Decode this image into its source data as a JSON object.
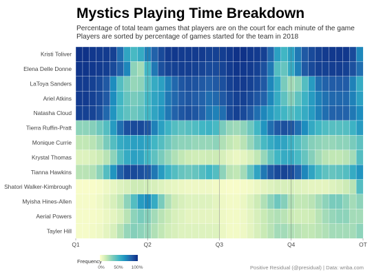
{
  "title": "Mystics Playing Time Breakdown",
  "subtitle_lines": [
    "Percentage of total team games that players are on the court for each minute of the game",
    "Players are sorted by percentage of games started for the team in 2018"
  ],
  "caption": "Positive Residual (@presidual)  |  Data: wnba.com",
  "colors": [
    "#ffffcc",
    "#c7e9b4",
    "#7fcdbb",
    "#41b6c4",
    "#1d91c0",
    "#225ea8",
    "#0c2c84"
  ],
  "legend": {
    "title": "Frequency",
    "ticks": [
      "0%",
      "50%",
      "100%"
    ]
  },
  "chart_data": {
    "type": "heatmap",
    "x_ticks": [
      "Q1",
      "Q2",
      "Q3",
      "Q4",
      "OT"
    ],
    "columns": 42,
    "value_range": [
      0,
      1
    ],
    "rows": [
      {
        "player": "Kristi Toliver",
        "values": [
          0.98,
          0.98,
          0.96,
          0.95,
          0.95,
          0.93,
          0.78,
          0.58,
          0.48,
          0.55,
          0.72,
          0.82,
          0.9,
          0.95,
          0.96,
          0.95,
          0.95,
          0.95,
          0.95,
          0.93,
          0.93,
          0.94,
          0.96,
          0.98,
          0.98,
          0.96,
          0.95,
          0.93,
          0.8,
          0.6,
          0.5,
          0.6,
          0.75,
          0.85,
          0.9,
          0.93,
          0.95,
          0.96,
          0.96,
          0.96,
          0.9,
          0.7
        ]
      },
      {
        "player": "Elena Delle Donne",
        "values": [
          0.97,
          0.97,
          0.96,
          0.95,
          0.94,
          0.9,
          0.82,
          0.7,
          0.3,
          0.25,
          0.5,
          0.75,
          0.88,
          0.92,
          0.93,
          0.94,
          0.94,
          0.93,
          0.92,
          0.9,
          0.9,
          0.92,
          0.95,
          0.97,
          0.96,
          0.95,
          0.93,
          0.88,
          0.75,
          0.45,
          0.4,
          0.55,
          0.72,
          0.85,
          0.9,
          0.93,
          0.93,
          0.94,
          0.94,
          0.93,
          0.88,
          0.78
        ]
      },
      {
        "player": "LaToya Sanders",
        "values": [
          0.95,
          0.95,
          0.93,
          0.9,
          0.85,
          0.68,
          0.45,
          0.35,
          0.28,
          0.3,
          0.45,
          0.55,
          0.6,
          0.72,
          0.8,
          0.86,
          0.88,
          0.87,
          0.85,
          0.83,
          0.85,
          0.88,
          0.93,
          0.95,
          0.95,
          0.93,
          0.9,
          0.85,
          0.7,
          0.55,
          0.35,
          0.25,
          0.3,
          0.45,
          0.62,
          0.78,
          0.82,
          0.84,
          0.84,
          0.84,
          0.72,
          0.55
        ]
      },
      {
        "player": "Ariel Atkins",
        "values": [
          0.95,
          0.95,
          0.93,
          0.9,
          0.85,
          0.68,
          0.5,
          0.4,
          0.35,
          0.38,
          0.5,
          0.58,
          0.62,
          0.75,
          0.8,
          0.84,
          0.86,
          0.84,
          0.82,
          0.78,
          0.8,
          0.85,
          0.9,
          0.93,
          0.93,
          0.9,
          0.86,
          0.82,
          0.7,
          0.55,
          0.42,
          0.32,
          0.42,
          0.52,
          0.62,
          0.72,
          0.77,
          0.8,
          0.8,
          0.8,
          0.72,
          0.6
        ]
      },
      {
        "player": "Natasha Cloud",
        "values": [
          0.93,
          0.93,
          0.92,
          0.88,
          0.8,
          0.65,
          0.48,
          0.42,
          0.38,
          0.42,
          0.5,
          0.58,
          0.65,
          0.75,
          0.82,
          0.86,
          0.88,
          0.86,
          0.82,
          0.75,
          0.72,
          0.78,
          0.9,
          0.93,
          0.9,
          0.85,
          0.78,
          0.7,
          0.62,
          0.55,
          0.5,
          0.45,
          0.5,
          0.55,
          0.62,
          0.72,
          0.78,
          0.82,
          0.82,
          0.82,
          0.75,
          0.68
        ]
      },
      {
        "player": "Tierra Ruffin-Pratt",
        "values": [
          0.3,
          0.3,
          0.32,
          0.38,
          0.45,
          0.62,
          0.78,
          0.88,
          0.9,
          0.9,
          0.86,
          0.72,
          0.6,
          0.52,
          0.45,
          0.42,
          0.44,
          0.46,
          0.5,
          0.52,
          0.48,
          0.35,
          0.28,
          0.26,
          0.3,
          0.38,
          0.5,
          0.65,
          0.78,
          0.85,
          0.88,
          0.86,
          0.78,
          0.68,
          0.56,
          0.5,
          0.46,
          0.44,
          0.44,
          0.45,
          0.52,
          0.62
        ]
      },
      {
        "player": "Monique Currie",
        "values": [
          0.18,
          0.18,
          0.2,
          0.25,
          0.35,
          0.45,
          0.55,
          0.58,
          0.6,
          0.6,
          0.58,
          0.5,
          0.45,
          0.38,
          0.32,
          0.3,
          0.3,
          0.28,
          0.28,
          0.28,
          0.3,
          0.22,
          0.18,
          0.15,
          0.2,
          0.28,
          0.38,
          0.48,
          0.55,
          0.6,
          0.58,
          0.52,
          0.45,
          0.38,
          0.32,
          0.3,
          0.28,
          0.28,
          0.3,
          0.3,
          0.35,
          0.42
        ]
      },
      {
        "player": "Krystal Thomas",
        "values": [
          0.1,
          0.1,
          0.12,
          0.15,
          0.2,
          0.3,
          0.45,
          0.55,
          0.6,
          0.58,
          0.5,
          0.42,
          0.35,
          0.28,
          0.22,
          0.18,
          0.15,
          0.14,
          0.14,
          0.15,
          0.15,
          0.12,
          0.08,
          0.06,
          0.08,
          0.12,
          0.18,
          0.28,
          0.4,
          0.5,
          0.55,
          0.55,
          0.48,
          0.4,
          0.32,
          0.25,
          0.2,
          0.18,
          0.18,
          0.2,
          0.25,
          0.45
        ]
      },
      {
        "player": "Tianna Hawkins",
        "values": [
          0.2,
          0.2,
          0.22,
          0.3,
          0.45,
          0.65,
          0.82,
          0.9,
          0.9,
          0.88,
          0.85,
          0.75,
          0.62,
          0.52,
          0.45,
          0.4,
          0.38,
          0.4,
          0.45,
          0.5,
          0.45,
          0.3,
          0.2,
          0.18,
          0.25,
          0.4,
          0.58,
          0.75,
          0.85,
          0.9,
          0.92,
          0.9,
          0.82,
          0.7,
          0.58,
          0.48,
          0.42,
          0.4,
          0.42,
          0.45,
          0.55,
          0.65
        ]
      },
      {
        "player": "Shatori Walker-Kimbrough",
        "values": [
          0.02,
          0.02,
          0.02,
          0.03,
          0.05,
          0.07,
          0.1,
          0.12,
          0.15,
          0.15,
          0.14,
          0.12,
          0.1,
          0.08,
          0.07,
          0.06,
          0.05,
          0.05,
          0.05,
          0.05,
          0.04,
          0.03,
          0.02,
          0.02,
          0.03,
          0.04,
          0.06,
          0.08,
          0.1,
          0.12,
          0.12,
          0.12,
          0.1,
          0.09,
          0.08,
          0.08,
          0.08,
          0.1,
          0.12,
          0.15,
          0.2,
          0.45
        ]
      },
      {
        "player": "Myisha Hines-Allen",
        "values": [
          0.03,
          0.03,
          0.03,
          0.05,
          0.08,
          0.12,
          0.18,
          0.3,
          0.45,
          0.62,
          0.68,
          0.55,
          0.35,
          0.22,
          0.15,
          0.12,
          0.1,
          0.1,
          0.1,
          0.1,
          0.08,
          0.05,
          0.04,
          0.04,
          0.06,
          0.1,
          0.15,
          0.22,
          0.3,
          0.38,
          0.32,
          0.22,
          0.18,
          0.18,
          0.2,
          0.25,
          0.3,
          0.35,
          0.35,
          0.3,
          0.25,
          0.3
        ]
      },
      {
        "player": "Aerial Powers",
        "values": [
          0.03,
          0.03,
          0.03,
          0.04,
          0.06,
          0.08,
          0.12,
          0.2,
          0.3,
          0.35,
          0.32,
          0.25,
          0.2,
          0.16,
          0.12,
          0.1,
          0.08,
          0.08,
          0.08,
          0.08,
          0.08,
          0.05,
          0.04,
          0.04,
          0.05,
          0.08,
          0.12,
          0.16,
          0.2,
          0.22,
          0.2,
          0.16,
          0.14,
          0.14,
          0.15,
          0.2,
          0.25,
          0.28,
          0.3,
          0.3,
          0.25,
          0.25
        ]
      },
      {
        "player": "Tayler Hill",
        "values": [
          0.03,
          0.03,
          0.04,
          0.05,
          0.08,
          0.12,
          0.2,
          0.28,
          0.32,
          0.3,
          0.28,
          0.22,
          0.18,
          0.14,
          0.12,
          0.1,
          0.1,
          0.1,
          0.1,
          0.1,
          0.1,
          0.06,
          0.04,
          0.04,
          0.05,
          0.08,
          0.12,
          0.16,
          0.2,
          0.25,
          0.25,
          0.22,
          0.2,
          0.18,
          0.18,
          0.2,
          0.22,
          0.25,
          0.25,
          0.25,
          0.25,
          0.3
        ]
      }
    ]
  }
}
